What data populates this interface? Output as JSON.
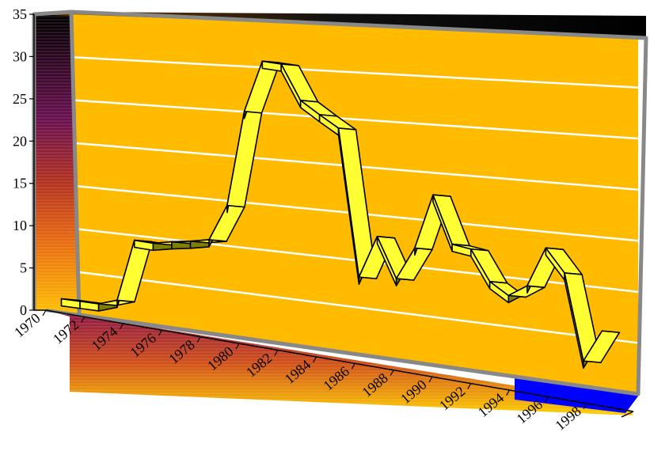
{
  "chart_data": {
    "type": "line",
    "title": "",
    "xlabel": "",
    "ylabel": "",
    "x_tick_labels": [
      "1970",
      "1972",
      "1974",
      "1976",
      "1978",
      "1980",
      "1982",
      "1984",
      "1986",
      "1988",
      "1990",
      "1992",
      "1994",
      "1996",
      "1998"
    ],
    "y_tick_labels": [
      "0",
      "5",
      "10",
      "15",
      "20",
      "25",
      "30",
      "35"
    ],
    "ylim": [
      0,
      35
    ],
    "xlim": [
      1970,
      2000
    ],
    "grid": true,
    "legend": "none",
    "series": [
      {
        "x": [
          1970,
          1971,
          1972,
          1973,
          1974,
          1975,
          1976,
          1977,
          1978,
          1979,
          1980,
          1981,
          1982,
          1983,
          1984,
          1985,
          1986,
          1987,
          1988,
          1989,
          1990,
          1991,
          1992,
          1993,
          1994,
          1995,
          1996,
          1997,
          1998,
          1999
        ],
        "values": [
          1.7,
          1.7,
          1.7,
          2.4,
          9.5,
          9.4,
          9.8,
          10.1,
          10.5,
          14.5,
          25.0,
          30.6,
          30.4,
          26.6,
          25.2,
          23.9,
          8.3,
          12.8,
          8.6,
          12.0,
          17.7,
          12.8,
          12.5,
          9.4,
          8.2,
          9.4,
          13.4,
          11.1,
          2.6,
          5.8
        ]
      }
    ],
    "colors": {
      "back_wall": "#ffbb00",
      "ribbon_top": "#ffff33",
      "ribbon_side": "#808000",
      "gridline": "#ffffff",
      "frame": "#888888",
      "floor_edge": "#0000ff"
    }
  }
}
